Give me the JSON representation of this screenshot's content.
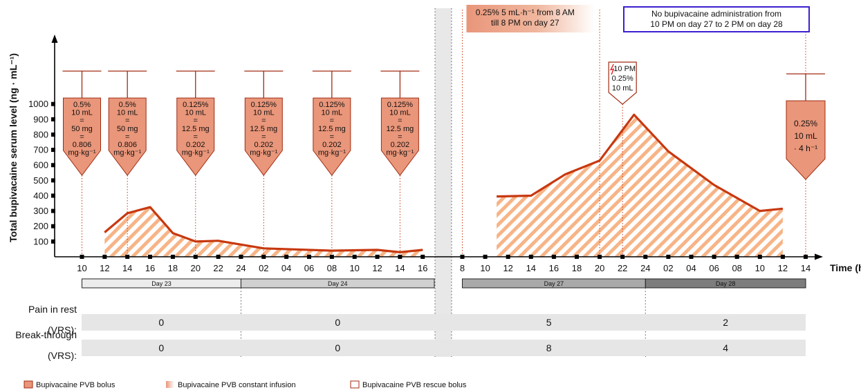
{
  "chart_data": {
    "type": "area",
    "ylabel": "Total bupivacaine serum level (ng · mL⁻¹)",
    "xlabel": "Time (h)",
    "yticks": [
      100,
      200,
      300,
      400,
      500,
      600,
      700,
      800,
      900,
      1000
    ],
    "ylim": [
      0,
      1000
    ],
    "x_ticks_left": [
      "10",
      "12",
      "14",
      "16",
      "18",
      "20",
      "22",
      "24",
      "02",
      "04",
      "06",
      "08",
      "10",
      "12",
      "14",
      "16"
    ],
    "x_ticks_right": [
      "8",
      "10",
      "12",
      "14",
      "16",
      "18",
      "20",
      "22",
      "24",
      "02",
      "04",
      "06",
      "08",
      "10",
      "12",
      "14"
    ],
    "days": [
      {
        "label": "Day 23",
        "shade": "#ececec"
      },
      {
        "label": "Day 24",
        "shade": "#d0d0d0"
      },
      {
        "label": "Day 27",
        "shade": "#a9a9a9"
      },
      {
        "label": "Day 28",
        "shade": "#7d7d7d"
      }
    ],
    "series": [
      {
        "name": "Bupivacaine PVB constant infusion",
        "segment": "days 23-24",
        "points": [
          {
            "day": 23,
            "hour": 12,
            "value": 160
          },
          {
            "day": 23,
            "hour": 14,
            "value": 285
          },
          {
            "day": 23,
            "hour": 16,
            "value": 325
          },
          {
            "day": 23,
            "hour": 18,
            "value": 155
          },
          {
            "day": 23,
            "hour": 20,
            "value": 100
          },
          {
            "day": 23,
            "hour": 22,
            "value": 105
          },
          {
            "day": 24,
            "hour": 2,
            "value": 55
          },
          {
            "day": 24,
            "hour": 8,
            "value": 40
          },
          {
            "day": 24,
            "hour": 12,
            "value": 45
          },
          {
            "day": 24,
            "hour": 14,
            "value": 30
          },
          {
            "day": 24,
            "hour": 16,
            "value": 45
          }
        ]
      },
      {
        "name": "Bupivacaine PVB constant infusion",
        "segment": "days 27-28",
        "points": [
          {
            "day": 27,
            "hour": 11,
            "value": 395
          },
          {
            "day": 27,
            "hour": 14,
            "value": 400
          },
          {
            "day": 27,
            "hour": 17,
            "value": 540
          },
          {
            "day": 27,
            "hour": 20,
            "value": 630
          },
          {
            "day": 27,
            "hour": 23,
            "value": 930
          },
          {
            "day": 28,
            "hour": 2,
            "value": 690
          },
          {
            "day": 28,
            "hour": 6,
            "value": 470
          },
          {
            "day": 28,
            "hour": 10,
            "value": 300
          },
          {
            "day": 28,
            "hour": 12,
            "value": 315
          }
        ]
      }
    ],
    "boluses": [
      {
        "day": 23,
        "hour": 10,
        "lines": [
          "0.5%",
          "10 mL",
          "=",
          "50 mg",
          "=",
          "0.806",
          "mg·kg⁻¹"
        ]
      },
      {
        "day": 23,
        "hour": 14,
        "lines": [
          "0.5%",
          "10 mL",
          "=",
          "50 mg",
          "=",
          "0.806",
          "mg·kg⁻¹"
        ]
      },
      {
        "day": 23,
        "hour": 20,
        "lines": [
          "0.125%",
          "10 mL",
          "=",
          "12.5 mg",
          "=",
          "0.202",
          "mg·kg⁻¹"
        ]
      },
      {
        "day": 24,
        "hour": 2,
        "lines": [
          "0.125%",
          "10 mL",
          "=",
          "12.5 mg",
          "=",
          "0.202",
          "mg·kg⁻¹"
        ]
      },
      {
        "day": 24,
        "hour": 8,
        "lines": [
          "0.125%",
          "10 mL",
          "=",
          "12.5 mg",
          "=",
          "0.202",
          "mg·kg⁻¹"
        ]
      },
      {
        "day": 24,
        "hour": 14,
        "lines": [
          "0.125%",
          "10 mL",
          "=",
          "12.5 mg",
          "=",
          "0.202",
          "mg·kg⁻¹"
        ]
      }
    ],
    "rescue_bolus": {
      "day": 27,
      "hour": 22,
      "lines": [
        "10 PM",
        "0.25%",
        "10 mL"
      ]
    },
    "infusion_bolus": {
      "day": 28,
      "hour": 14,
      "lines": [
        "0.25%",
        "10 mL",
        "· 4 h⁻¹"
      ]
    },
    "annotations": {
      "infusion_note": [
        "0.25% 5 mL·h⁻¹ from 8 AM",
        "till 8 PM on day 27"
      ],
      "pause_note": [
        "No bupivacaine administration from",
        "10 PM on day 27 to 2 PM on day 28"
      ]
    },
    "pain_table": {
      "rows": [
        {
          "label": [
            "Pain in rest",
            "(VRS):"
          ],
          "values": [
            "0",
            "0",
            "5",
            "2"
          ]
        },
        {
          "label": [
            "Break-through",
            "(VRS):"
          ],
          "values": [
            "0",
            "0",
            "8",
            "4"
          ]
        }
      ]
    },
    "legend": [
      {
        "label": "Bupivacaine PVB bolus",
        "kind": "bolus"
      },
      {
        "label": "Bupivacaine PVB constant infusion",
        "kind": "infusion"
      },
      {
        "label": "Bupivacaine PVB rescue bolus",
        "kind": "rescue"
      }
    ],
    "colors": {
      "line": "#c7380f",
      "hatch": "#f7b487",
      "bolus_fill": "#e9967a",
      "bolus_stroke": "#a02a10",
      "pause_box": "#3b1fd1"
    }
  }
}
